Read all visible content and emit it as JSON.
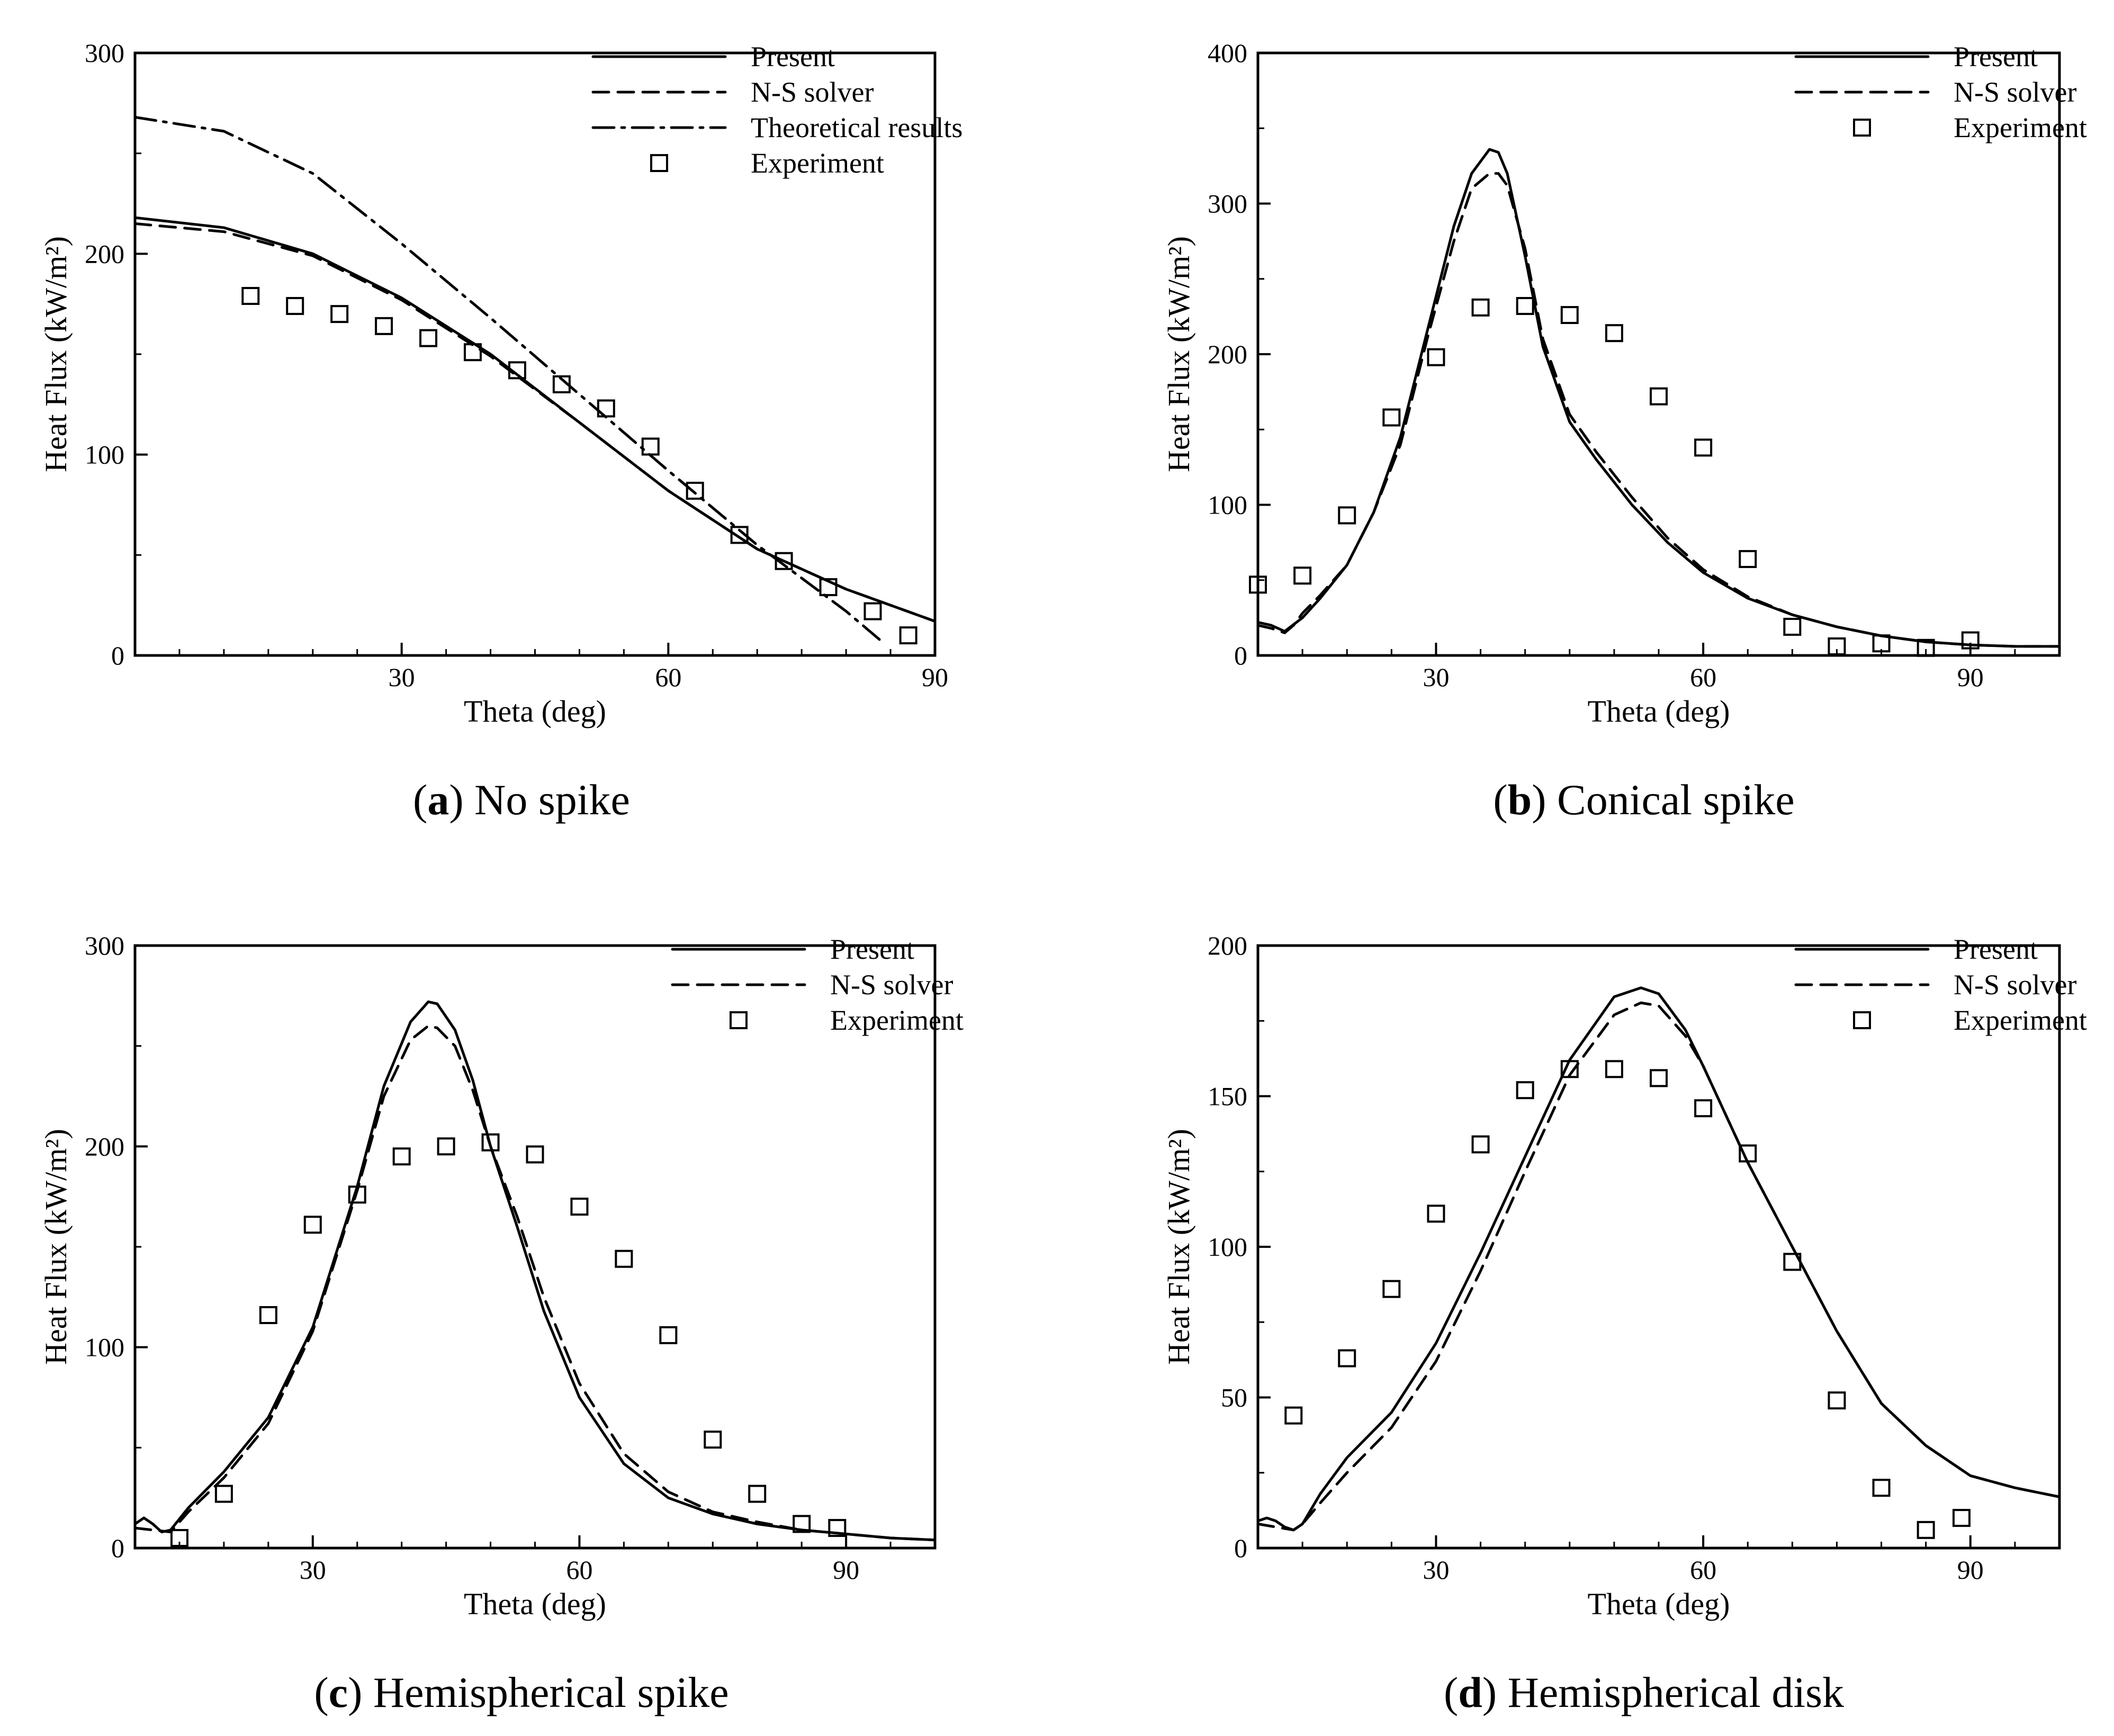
{
  "chart_data": [
    {
      "type": "line",
      "panel_label": "a",
      "caption": "No spike",
      "xlabel": "Theta (deg)",
      "ylabel": "Heat Flux (kW/m²)",
      "xlim": [
        0,
        90
      ],
      "ylim": [
        0,
        300
      ],
      "xticks": [
        30,
        60,
        90
      ],
      "yticks": [
        0,
        100,
        200,
        300
      ],
      "grid": false,
      "legend_position": "top-right",
      "series": [
        {
          "name": "Present",
          "style": "solid",
          "x": [
            0,
            10,
            20,
            30,
            40,
            50,
            60,
            70,
            80,
            90
          ],
          "y": [
            218,
            213,
            200,
            178,
            150,
            116,
            82,
            53,
            33,
            17
          ]
        },
        {
          "name": "N-S solver",
          "style": "dashed",
          "x": [
            0,
            10,
            20,
            30,
            40,
            50,
            60,
            70,
            80,
            90
          ],
          "y": [
            215,
            211,
            199,
            177,
            149,
            116,
            82,
            53,
            33,
            17
          ]
        },
        {
          "name": "Theoretical results",
          "style": "dashdot",
          "x": [
            0,
            10,
            20,
            30,
            40,
            50,
            60,
            70,
            80,
            84
          ],
          "y": [
            268,
            261,
            240,
            205,
            168,
            130,
            92,
            55,
            22,
            7
          ]
        },
        {
          "name": "Experiment",
          "style": "square",
          "x": [
            13,
            18,
            23,
            28,
            33,
            38,
            43,
            48,
            53,
            58,
            63,
            68,
            73,
            78,
            83,
            87
          ],
          "y": [
            179,
            174,
            170,
            164,
            158,
            151,
            142,
            135,
            123,
            104,
            82,
            60,
            47,
            34,
            22,
            10
          ]
        }
      ]
    },
    {
      "type": "line",
      "panel_label": "b",
      "caption": "Conical spike",
      "xlabel": "Theta (deg)",
      "ylabel": "Heat Flux (kW/m²)",
      "xlim": [
        10,
        100
      ],
      "ylim": [
        0,
        400
      ],
      "xticks": [
        30,
        60,
        90
      ],
      "yticks": [
        0,
        100,
        200,
        300,
        400
      ],
      "grid": false,
      "legend_position": "top-right",
      "series": [
        {
          "name": "Present",
          "style": "solid",
          "x": [
            10,
            11.5,
            13,
            15,
            17,
            20,
            23,
            26,
            29,
            32,
            34,
            36,
            37,
            38,
            40,
            42,
            45,
            48,
            52,
            56,
            60,
            65,
            70,
            75,
            80,
            85,
            90,
            95,
            100
          ],
          "y": [
            22,
            20,
            16,
            25,
            38,
            60,
            95,
            145,
            215,
            285,
            320,
            336,
            334,
            320,
            265,
            205,
            155,
            130,
            100,
            75,
            55,
            38,
            27,
            19,
            13,
            9,
            7,
            6,
            6
          ]
        },
        {
          "name": "N-S solver",
          "style": "dashed",
          "x": [
            10,
            11.5,
            13,
            14,
            15,
            17,
            20,
            23,
            26,
            29,
            32,
            34,
            36,
            37,
            38,
            40,
            42,
            45,
            48,
            52,
            56,
            60,
            65,
            70,
            75,
            80,
            85,
            90,
            95,
            100
          ],
          "y": [
            20,
            18,
            15,
            20,
            28,
            40,
            60,
            95,
            140,
            210,
            275,
            310,
            320,
            320,
            312,
            270,
            210,
            160,
            135,
            105,
            78,
            57,
            39,
            27,
            19,
            13,
            9,
            7,
            6,
            6
          ]
        },
        {
          "name": "Experiment",
          "style": "square",
          "x": [
            10,
            15,
            20,
            25,
            30,
            35,
            40,
            45,
            50,
            55,
            60,
            65,
            70,
            75,
            80,
            85,
            90
          ],
          "y": [
            47,
            53,
            93,
            158,
            198,
            231,
            232,
            226,
            214,
            172,
            138,
            64,
            19,
            6,
            8,
            5,
            10
          ]
        }
      ]
    },
    {
      "type": "line",
      "panel_label": "c",
      "caption": "Hemispherical spike",
      "xlabel": "Theta (deg)",
      "ylabel": "Heat Flux (kW/m²)",
      "xlim": [
        10,
        100
      ],
      "ylim": [
        0,
        300
      ],
      "xticks": [
        30,
        60,
        90
      ],
      "yticks": [
        0,
        100,
        200,
        300
      ],
      "grid": false,
      "legend_position": "top-right",
      "series": [
        {
          "name": "Present",
          "style": "solid",
          "x": [
            10,
            11,
            12,
            13,
            14,
            16,
            20,
            25,
            30,
            35,
            38,
            41,
            43,
            44,
            46,
            48,
            50,
            53,
            56,
            60,
            65,
            70,
            75,
            80,
            85,
            90,
            95,
            100
          ],
          "y": [
            12,
            15,
            12,
            8,
            9,
            20,
            38,
            65,
            110,
            180,
            230,
            262,
            272,
            271,
            258,
            233,
            200,
            160,
            118,
            75,
            42,
            25,
            17,
            12,
            9,
            7,
            5,
            4
          ]
        },
        {
          "name": "N-S solver",
          "style": "dashed",
          "x": [
            10,
            12,
            14,
            16,
            20,
            25,
            30,
            35,
            38,
            41,
            43,
            44,
            46,
            48,
            50,
            53,
            56,
            60,
            65,
            70,
            75,
            80,
            85,
            90,
            95,
            100
          ],
          "y": [
            10,
            9,
            8,
            18,
            35,
            62,
            108,
            178,
            225,
            253,
            260,
            259,
            250,
            228,
            200,
            165,
            125,
            82,
            47,
            28,
            18,
            13,
            9,
            7,
            5,
            4
          ]
        },
        {
          "name": "Experiment",
          "style": "square",
          "x": [
            15,
            20,
            25,
            30,
            35,
            40,
            45,
            50,
            55,
            60,
            65,
            70,
            75,
            80,
            85,
            89
          ],
          "y": [
            5,
            27,
            116,
            161,
            176,
            195,
            200,
            202,
            196,
            170,
            144,
            106,
            54,
            27,
            12,
            10
          ]
        }
      ]
    },
    {
      "type": "line",
      "panel_label": "d",
      "caption": "Hemispherical disk",
      "xlabel": "Theta (deg)",
      "ylabel": "Heat Flux (kW/m²)",
      "xlim": [
        10,
        100
      ],
      "ylim": [
        0,
        200
      ],
      "xticks": [
        30,
        60,
        90
      ],
      "yticks": [
        0,
        50,
        100,
        150,
        200
      ],
      "grid": false,
      "legend_position": "top-right",
      "series": [
        {
          "name": "Present",
          "style": "solid",
          "x": [
            10,
            11,
            12,
            13,
            14,
            15,
            17,
            20,
            25,
            30,
            35,
            40,
            45,
            50,
            53,
            55,
            58,
            60,
            65,
            70,
            75,
            80,
            85,
            90,
            95,
            100
          ],
          "y": [
            9,
            10,
            9,
            7,
            6,
            8,
            18,
            30,
            45,
            68,
            98,
            130,
            162,
            183,
            186,
            184,
            172,
            160,
            128,
            100,
            72,
            48,
            34,
            24,
            20,
            17
          ]
        },
        {
          "name": "N-S solver",
          "style": "dashed",
          "x": [
            10,
            12,
            14,
            15,
            17,
            20,
            25,
            30,
            35,
            40,
            45,
            50,
            53,
            55,
            58,
            60,
            65,
            70,
            75,
            80,
            85,
            90,
            95,
            100
          ],
          "y": [
            8,
            7,
            6,
            8,
            15,
            25,
            40,
            62,
            92,
            125,
            157,
            177,
            181,
            180,
            170,
            160,
            128,
            100,
            72,
            48,
            34,
            24,
            20,
            17
          ]
        },
        {
          "name": "Experiment",
          "style": "square",
          "x": [
            14,
            20,
            25,
            30,
            35,
            40,
            45,
            50,
            55,
            60,
            65,
            70,
            75,
            80,
            85,
            89
          ],
          "y": [
            44,
            63,
            86,
            111,
            134,
            152,
            159,
            159,
            156,
            146,
            131,
            95,
            49,
            20,
            6,
            10
          ]
        }
      ]
    }
  ]
}
